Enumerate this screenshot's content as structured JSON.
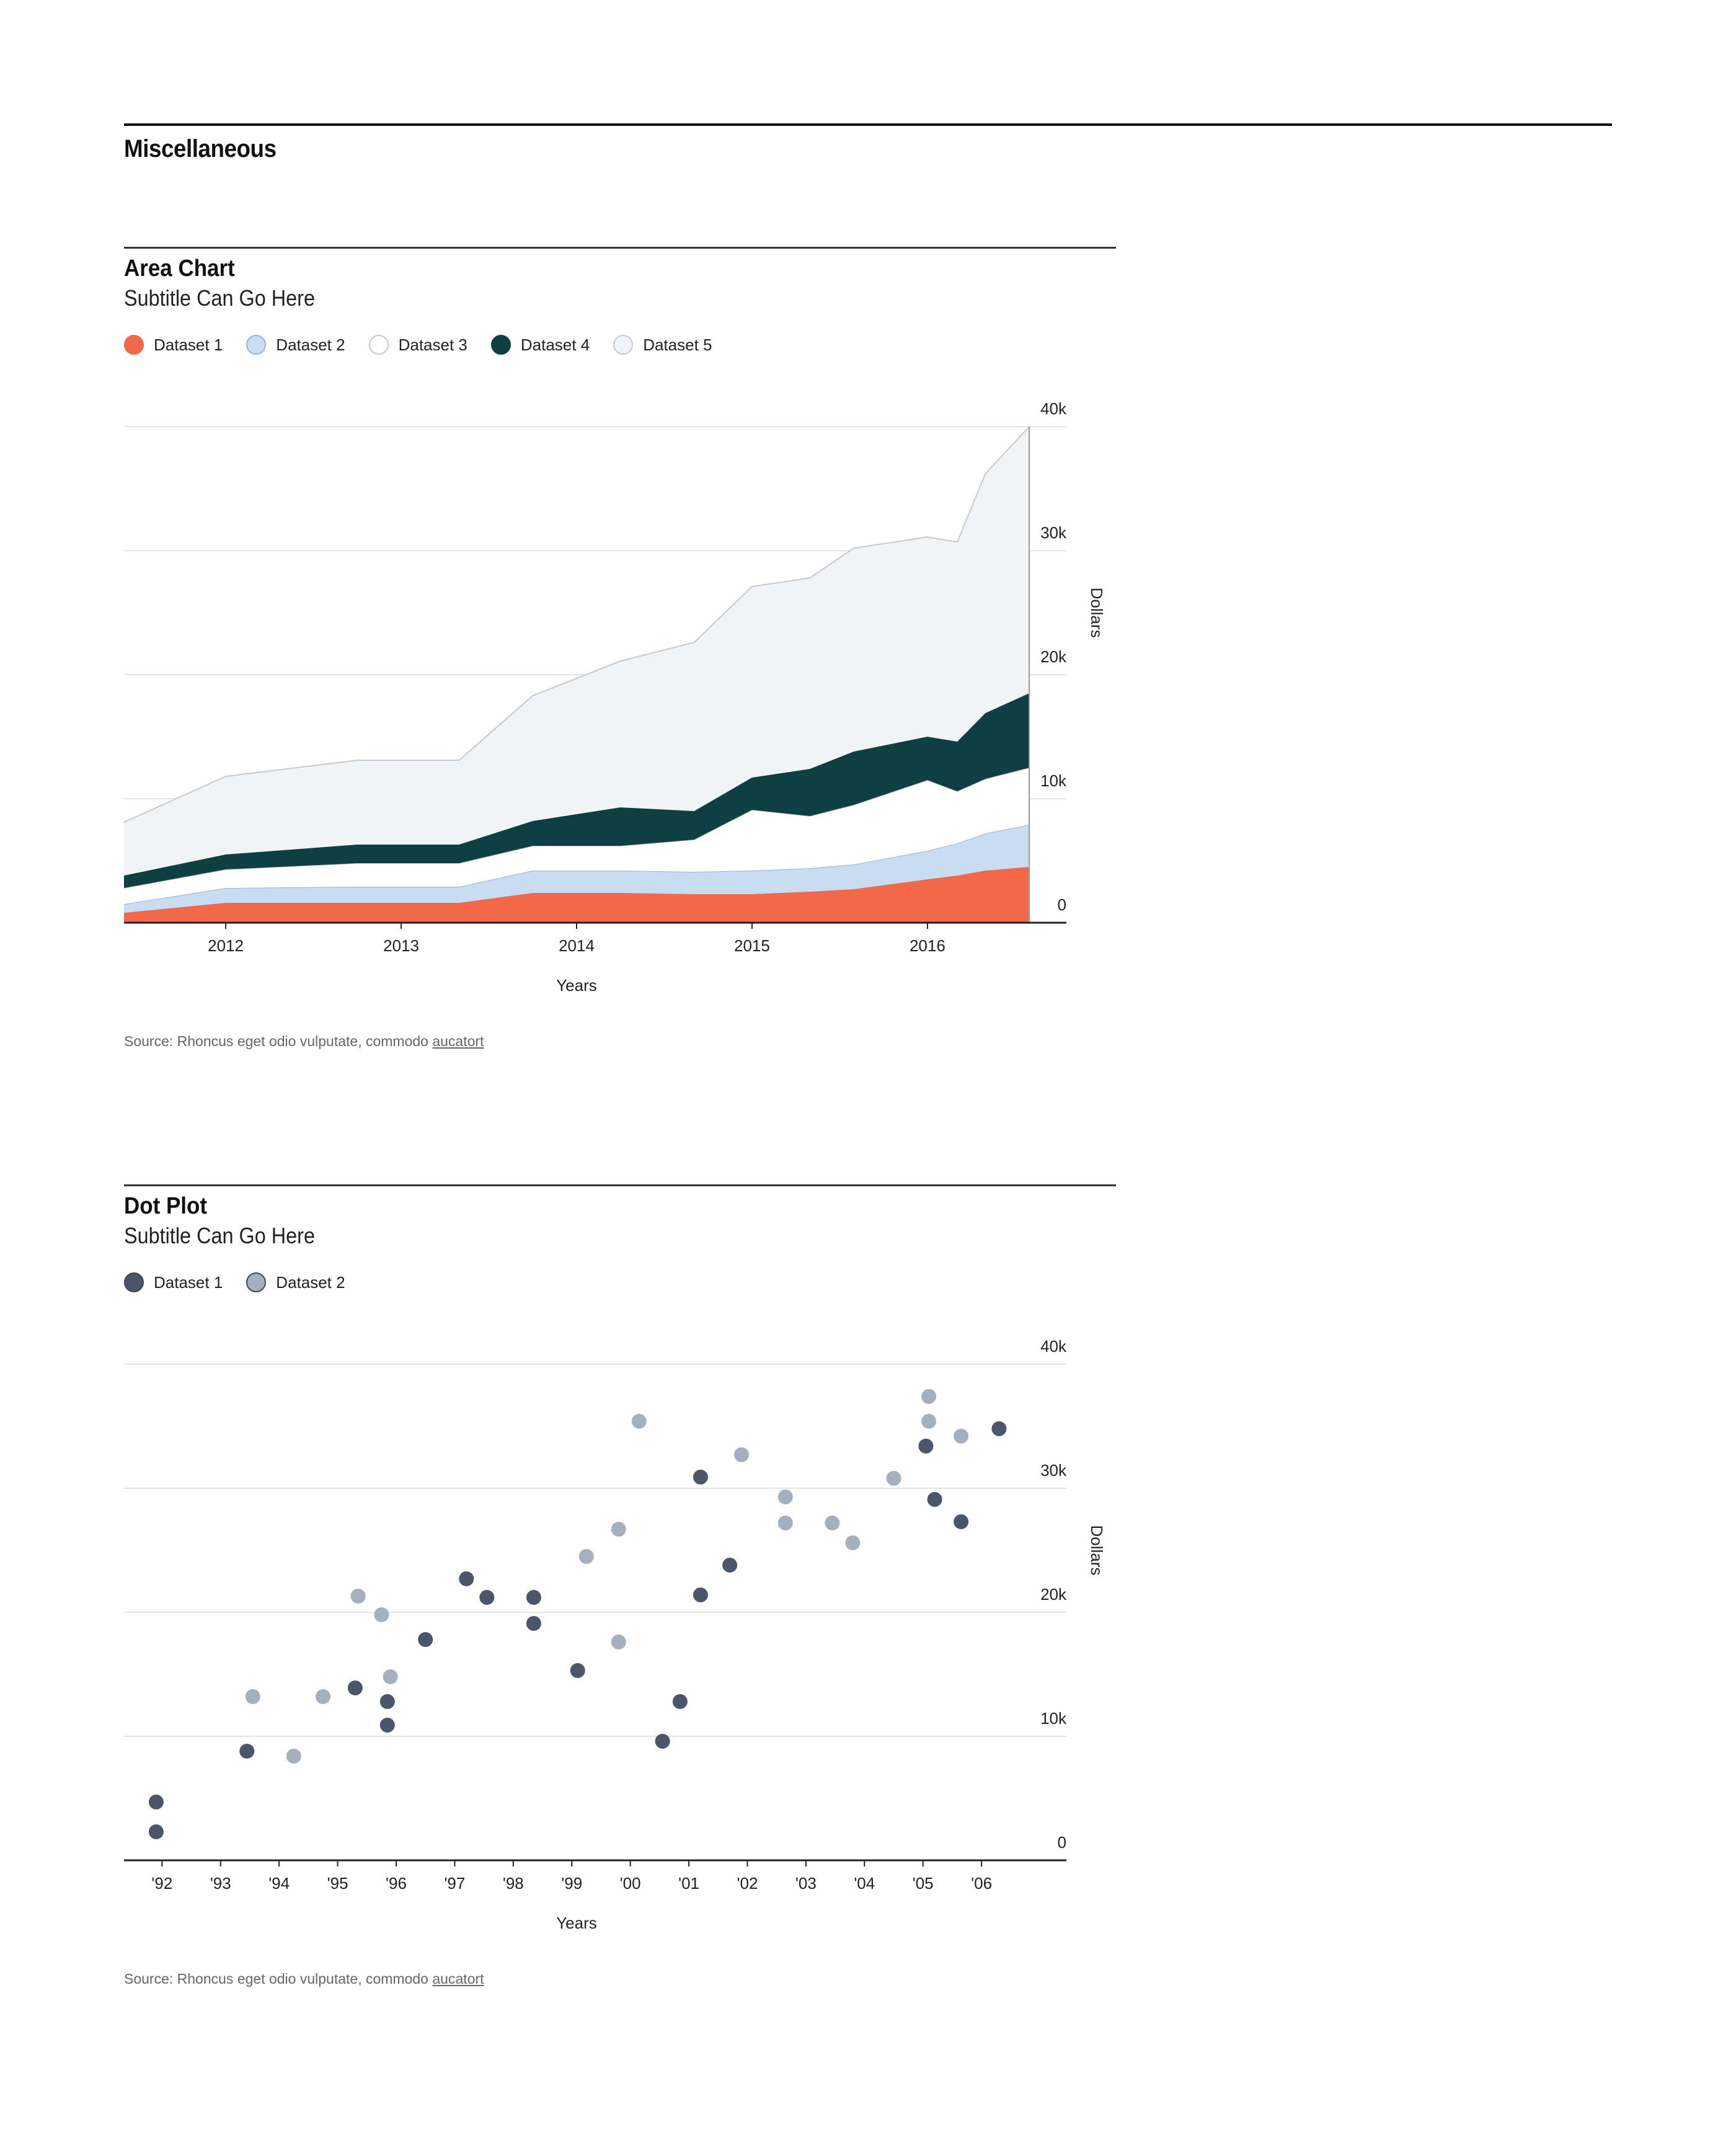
{
  "section": {
    "title": "Miscellaneous"
  },
  "chart_data": [
    {
      "type": "area",
      "title": "Area Chart",
      "subtitle": "Subtitle Can Go Here",
      "xlabel": "Years",
      "ylabel": "Dollars",
      "ylim": [
        0,
        40000
      ],
      "xlim": [
        2011.42,
        2016.58
      ],
      "yticks": [
        {
          "value": 0,
          "label": "0"
        },
        {
          "value": 10000,
          "label": "10k"
        },
        {
          "value": 20000,
          "label": "20k"
        },
        {
          "value": 30000,
          "label": "30k"
        },
        {
          "value": 40000,
          "label": "40k"
        }
      ],
      "xticks": [
        {
          "value": 2012,
          "label": "2012"
        },
        {
          "value": 2013,
          "label": "2013"
        },
        {
          "value": 2014,
          "label": "2014"
        },
        {
          "value": 2015,
          "label": "2015"
        },
        {
          "value": 2016,
          "label": "2016"
        }
      ],
      "grid": true,
      "stacked": true,
      "legend_position": "top-left",
      "x": [
        2011.42,
        2012.0,
        2012.75,
        2013.33,
        2013.75,
        2014.25,
        2014.67,
        2015.0,
        2015.33,
        2015.58,
        2016.0,
        2016.17,
        2016.33,
        2016.58
      ],
      "series": [
        {
          "name": "Dataset 1",
          "color": "#f26849",
          "stroke": "#f26849",
          "values": [
            800,
            1600,
            1600,
            1600,
            2400,
            2400,
            2300,
            2300,
            2500,
            2700,
            3500,
            3800,
            4200,
            4500
          ]
        },
        {
          "name": "Dataset 2",
          "color": "#c8dcf2",
          "stroke": "#9bb3c9",
          "values": [
            700,
            1200,
            1300,
            1300,
            1800,
            1800,
            1800,
            1900,
            1900,
            2000,
            2300,
            2600,
            3000,
            3400
          ]
        },
        {
          "name": "Dataset 3",
          "color": "#ffffff",
          "stroke": "#c8c8c8",
          "values": [
            1300,
            1500,
            1900,
            1900,
            2000,
            2000,
            2600,
            4900,
            4200,
            4800,
            5700,
            4200,
            4400,
            4600
          ]
        },
        {
          "name": "Dataset 4",
          "color": "#0e3f42",
          "stroke": "#0e3f42",
          "values": [
            1000,
            1200,
            1500,
            1500,
            2000,
            3100,
            2300,
            2600,
            3800,
            4300,
            3500,
            4000,
            5300,
            6000
          ]
        },
        {
          "name": "Dataset 5",
          "color": "#f1f4f7",
          "stroke": "#c8c8c8",
          "values": [
            4300,
            6300,
            6800,
            6800,
            10100,
            11800,
            13600,
            15400,
            15400,
            16400,
            16100,
            16100,
            19300,
            21500
          ]
        }
      ],
      "source_text": "Source: Rhoncus eget odio vulputate, commodo ",
      "source_link": "aucatort"
    },
    {
      "type": "scatter",
      "title": "Dot Plot",
      "subtitle": "Subtitle Can Go Here",
      "xlabel": "Years",
      "ylabel": "Dollars",
      "ylim": [
        0,
        40000
      ],
      "xlim": [
        1991.35,
        2007.45
      ],
      "yticks": [
        {
          "value": 0,
          "label": "0"
        },
        {
          "value": 10000,
          "label": "10k"
        },
        {
          "value": 20000,
          "label": "20k"
        },
        {
          "value": 30000,
          "label": "30k"
        },
        {
          "value": 40000,
          "label": "40k"
        }
      ],
      "xticks": [
        {
          "value": 1992,
          "label": "'92"
        },
        {
          "value": 1993,
          "label": "'93"
        },
        {
          "value": 1994,
          "label": "'94"
        },
        {
          "value": 1995,
          "label": "'95"
        },
        {
          "value": 1996,
          "label": "'96"
        },
        {
          "value": 1997,
          "label": "'97"
        },
        {
          "value": 1998,
          "label": "'98"
        },
        {
          "value": 1999,
          "label": "'99"
        },
        {
          "value": 2000,
          "label": "'00"
        },
        {
          "value": 2001,
          "label": "'01"
        },
        {
          "value": 2002,
          "label": "'02"
        },
        {
          "value": 2003,
          "label": "'03"
        },
        {
          "value": 2004,
          "label": "'04"
        },
        {
          "value": 2005,
          "label": "'05"
        },
        {
          "value": 2006,
          "label": "'06"
        }
      ],
      "grid": true,
      "legend_position": "top-left",
      "series": [
        {
          "name": "Dataset 1",
          "color": "#4a5669",
          "points": [
            [
              1991.9,
              2300
            ],
            [
              1991.9,
              4700
            ],
            [
              1993.45,
              8800
            ],
            [
              1995.3,
              13900
            ],
            [
              1995.85,
              12800
            ],
            [
              1995.85,
              10900
            ],
            [
              1996.5,
              17800
            ],
            [
              1997.2,
              22700
            ],
            [
              1997.55,
              21200
            ],
            [
              1998.35,
              21200
            ],
            [
              1998.35,
              19100
            ],
            [
              1999.1,
              15300
            ],
            [
              2000.55,
              9600
            ],
            [
              2000.85,
              12800
            ],
            [
              2001.2,
              21400
            ],
            [
              2001.2,
              30900
            ],
            [
              2001.7,
              23800
            ],
            [
              2005.05,
              33400
            ],
            [
              2005.2,
              29100
            ],
            [
              2005.65,
              27300
            ],
            [
              2006.3,
              34800
            ]
          ]
        },
        {
          "name": "Dataset 2",
          "color": "#a5b0be",
          "points": [
            [
              1993.55,
              13200
            ],
            [
              1994.25,
              8400
            ],
            [
              1994.75,
              13200
            ],
            [
              1995.35,
              21300
            ],
            [
              1995.75,
              19800
            ],
            [
              1995.9,
              14800
            ],
            [
              1999.25,
              24500
            ],
            [
              1999.8,
              26700
            ],
            [
              1999.8,
              17600
            ],
            [
              2000.15,
              35400
            ],
            [
              2001.9,
              32700
            ],
            [
              2002.65,
              29300
            ],
            [
              2002.65,
              27200
            ],
            [
              2003.45,
              27200
            ],
            [
              2003.8,
              25600
            ],
            [
              2004.5,
              30800
            ],
            [
              2005.1,
              37400
            ],
            [
              2005.1,
              35400
            ],
            [
              2005.65,
              34200
            ]
          ]
        }
      ],
      "source_text": "Source: Rhoncus eget odio vulputate, commodo ",
      "source_link": "aucatort"
    }
  ]
}
